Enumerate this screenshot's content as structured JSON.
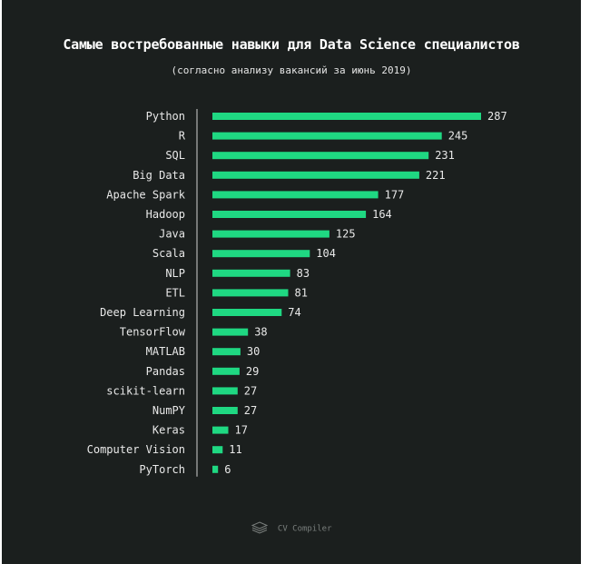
{
  "title": "Самые востребованные навыки для Data Science специалистов",
  "subtitle": "(согласно анализу вакансий за июнь 2019)",
  "footer": {
    "brand": "CV Compiler",
    "icon": "layers-icon"
  },
  "colors": {
    "background": "#1b1f1e",
    "bar": "#1fd882",
    "text": "#e9e9e9",
    "axis": "#d0d0d0"
  },
  "chart_data": {
    "type": "bar",
    "orientation": "horizontal",
    "categories": [
      "Python",
      "R",
      "SQL",
      "Big Data",
      "Apache Spark",
      "Hadoop",
      "Java",
      "Scala",
      "NLP",
      "ETL",
      "Deep Learning",
      "TensorFlow",
      "MATLAB",
      "Pandas",
      "scikit-learn",
      "NumPY",
      "Keras",
      "Computer Vision",
      "PyTorch"
    ],
    "values": [
      287,
      245,
      231,
      221,
      177,
      164,
      125,
      104,
      83,
      81,
      74,
      38,
      30,
      29,
      27,
      27,
      17,
      11,
      6
    ],
    "title": "Самые востребованные навыки для Data Science специалистов",
    "subtitle": "(согласно анализу вакансий за июнь 2019)",
    "xlabel": "",
    "ylabel": "",
    "xlim": [
      0,
      287
    ],
    "grid": false,
    "legend": "none",
    "data_labels": true
  }
}
